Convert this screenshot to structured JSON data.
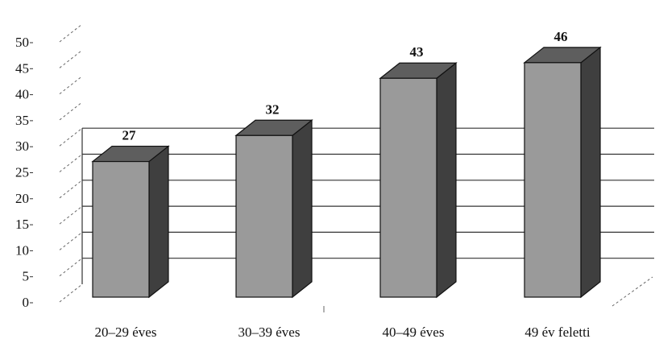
{
  "chart_data": {
    "type": "bar",
    "style": "3d",
    "categories": [
      "20–29 éves",
      "30–39 éves",
      "40–49 éves",
      "49 év feletti"
    ],
    "values": [
      27,
      32,
      43,
      46
    ],
    "data_labels": [
      "27",
      "32",
      "43",
      "46"
    ],
    "title": "",
    "xlabel": "",
    "ylabel": "",
    "ylim": [
      0,
      50
    ],
    "yticks": [
      "0",
      "5",
      "10",
      "15",
      "20",
      "25",
      "30",
      "35",
      "40",
      "45",
      "50"
    ],
    "grid": true,
    "colors": {
      "bar_front": "#9a9a9a",
      "bar_side": "#3f3f3f",
      "bar_top": "#5e5e5e",
      "bar_edge": "#111111"
    }
  }
}
